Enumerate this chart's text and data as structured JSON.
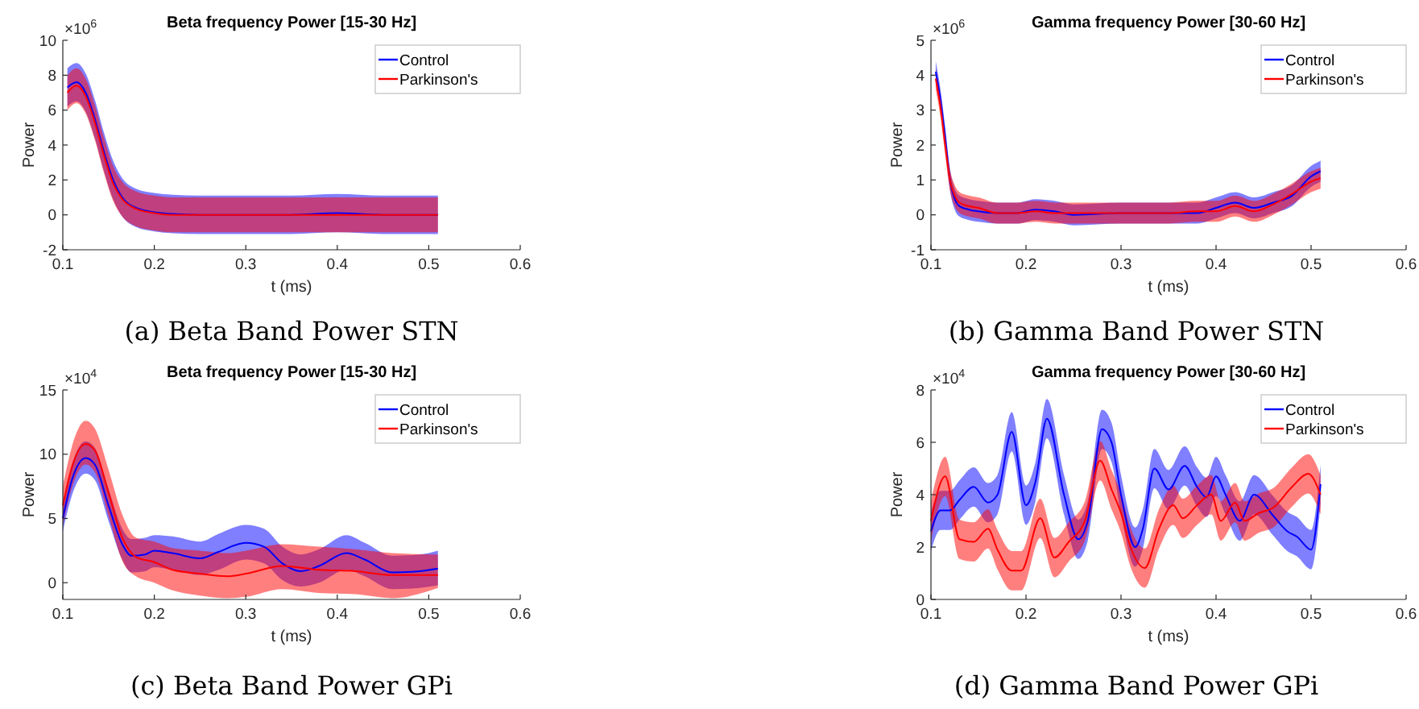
{
  "chart_data": [
    {
      "type": "line",
      "title": "Beta frequency Power [15-30 Hz]",
      "subtitle": "(a) Beta Band Power STN",
      "xlabel": "t (ms)",
      "ylabel": "Power",
      "annotations": [
        "×10$^{6}$"
      ],
      "legend": "top right",
      "xlim": [
        0.1,
        0.6
      ],
      "xticks": [
        0.1,
        0.2,
        0.3,
        0.4,
        0.5,
        0.6
      ],
      "ylim": [
        -2,
        10
      ],
      "yticks": [
        -2,
        0,
        2,
        4,
        6,
        8,
        10
      ],
      "x": [
        0.105,
        0.115,
        0.125,
        0.135,
        0.145,
        0.155,
        0.165,
        0.18,
        0.2,
        0.22,
        0.25,
        0.3,
        0.35,
        0.4,
        0.45,
        0.51
      ],
      "series": [
        {
          "name": "Control",
          "color": "#0000ff",
          "values": [
            7.3,
            7.6,
            7.0,
            5.5,
            3.6,
            2.0,
            1.0,
            0.4,
            0.15,
            0.05,
            0,
            0,
            0,
            0.1,
            0,
            0
          ],
          "lower": [
            6.2,
            6.5,
            5.9,
            4.4,
            2.5,
            0.9,
            -0.1,
            -0.7,
            -0.95,
            -1.05,
            -1.1,
            -1.1,
            -1.1,
            -1.0,
            -1.1,
            -1.1
          ],
          "upper": [
            8.4,
            8.7,
            8.1,
            6.6,
            4.7,
            3.1,
            2.1,
            1.5,
            1.25,
            1.15,
            1.1,
            1.1,
            1.1,
            1.2,
            1.1,
            1.1
          ]
        },
        {
          "name": "Parkinson's",
          "color": "#ff0000",
          "values": [
            7.0,
            7.4,
            6.8,
            5.3,
            3.4,
            1.8,
            0.9,
            0.35,
            0.1,
            0,
            0,
            0,
            0,
            0,
            0,
            0
          ],
          "lower": [
            6.0,
            6.4,
            5.8,
            4.3,
            2.4,
            0.8,
            -0.1,
            -0.65,
            -0.9,
            -1.0,
            -1.0,
            -1.0,
            -1.0,
            -1.0,
            -1.0,
            -1.0
          ],
          "upper": [
            8.0,
            8.4,
            7.8,
            6.3,
            4.4,
            2.8,
            1.9,
            1.35,
            1.1,
            1.0,
            1.0,
            1.0,
            1.0,
            1.0,
            1.0,
            1.0
          ]
        }
      ]
    },
    {
      "type": "line",
      "title": "Gamma frequency Power [30-60 Hz]",
      "subtitle": "(b) Gamma Band Power STN",
      "xlabel": "t (ms)",
      "ylabel": "Power",
      "annotations": [
        "×10$^{6}$"
      ],
      "legend": "top right",
      "xlim": [
        0.1,
        0.6
      ],
      "xticks": [
        0.1,
        0.2,
        0.3,
        0.4,
        0.5,
        0.6
      ],
      "ylim": [
        -1,
        5
      ],
      "yticks": [
        -1,
        0,
        1,
        2,
        3,
        4,
        5
      ],
      "x": [
        0.105,
        0.11,
        0.115,
        0.12,
        0.125,
        0.13,
        0.14,
        0.15,
        0.17,
        0.19,
        0.21,
        0.23,
        0.25,
        0.3,
        0.35,
        0.38,
        0.4,
        0.42,
        0.44,
        0.46,
        0.48,
        0.5,
        0.51
      ],
      "series": [
        {
          "name": "Control",
          "color": "#0000ff",
          "values": [
            4.1,
            3.3,
            2.2,
            1.0,
            0.45,
            0.25,
            0.15,
            0.1,
            0.05,
            0.05,
            0.15,
            0.1,
            0.0,
            0.05,
            0.05,
            0.05,
            0.2,
            0.35,
            0.2,
            0.35,
            0.55,
            1.1,
            1.25
          ],
          "lower": [
            3.8,
            3.0,
            1.9,
            0.7,
            0.15,
            -0.05,
            -0.15,
            -0.2,
            -0.25,
            -0.25,
            -0.15,
            -0.2,
            -0.3,
            -0.25,
            -0.25,
            -0.25,
            -0.1,
            0.05,
            -0.1,
            0.05,
            0.25,
            0.8,
            0.95
          ],
          "upper": [
            4.4,
            3.6,
            2.5,
            1.3,
            0.75,
            0.55,
            0.45,
            0.4,
            0.35,
            0.35,
            0.45,
            0.4,
            0.3,
            0.35,
            0.35,
            0.35,
            0.5,
            0.65,
            0.5,
            0.65,
            0.85,
            1.4,
            1.55
          ]
        },
        {
          "name": "Parkinson's",
          "color": "#ff0000",
          "values": [
            3.9,
            3.1,
            2.0,
            1.0,
            0.55,
            0.35,
            0.25,
            0.2,
            0.05,
            0.05,
            0.1,
            0.05,
            0.05,
            0.05,
            0.05,
            0.1,
            0.1,
            0.25,
            0.1,
            0.3,
            0.6,
            0.95,
            1.05
          ],
          "lower": [
            3.6,
            2.8,
            1.7,
            0.7,
            0.25,
            0.05,
            -0.05,
            -0.1,
            -0.25,
            -0.25,
            -0.2,
            -0.25,
            -0.25,
            -0.25,
            -0.25,
            -0.2,
            -0.2,
            -0.05,
            -0.2,
            0.0,
            0.3,
            0.65,
            0.75
          ],
          "upper": [
            4.2,
            3.4,
            2.3,
            1.3,
            0.85,
            0.65,
            0.55,
            0.5,
            0.35,
            0.35,
            0.4,
            0.35,
            0.35,
            0.35,
            0.35,
            0.4,
            0.4,
            0.55,
            0.4,
            0.6,
            0.9,
            1.25,
            1.35
          ]
        }
      ]
    },
    {
      "type": "line",
      "title": "Beta frequency Power [15-30 Hz]",
      "subtitle": "(c) Beta Band Power GPi",
      "xlabel": "t (ms)",
      "ylabel": "Power",
      "annotations": [
        "×10$^{4}$"
      ],
      "legend": "top right",
      "xlim": [
        0.1,
        0.6
      ],
      "xticks": [
        0.1,
        0.2,
        0.3,
        0.4,
        0.5,
        0.6
      ],
      "ylim": [
        -1.3,
        15
      ],
      "yticks": [
        0,
        5,
        10,
        15
      ],
      "series": [
        {
          "name": "Control",
          "color": "#0000ff",
          "x": [
            0.1,
            0.11,
            0.125,
            0.135,
            0.15,
            0.165,
            0.175,
            0.19,
            0.2,
            0.22,
            0.25,
            0.27,
            0.3,
            0.32,
            0.34,
            0.36,
            0.38,
            0.41,
            0.43,
            0.46,
            0.49,
            0.51
          ],
          "values": [
            5,
            8,
            9.7,
            9.2,
            6,
            3,
            2.1,
            2.2,
            2.5,
            2.3,
            1.9,
            2.4,
            3.1,
            2.8,
            1.5,
            0.9,
            1.3,
            2.3,
            1.8,
            0.8,
            0.9,
            1.1
          ],
          "lower": [
            4,
            6.8,
            8.5,
            8.0,
            4.8,
            1.8,
            0.8,
            0.9,
            1.2,
            1.0,
            0.6,
            1.0,
            1.8,
            1.5,
            0.2,
            -0.3,
            0.0,
            1.0,
            0.5,
            -0.5,
            -0.4,
            -0.2
          ],
          "upper": [
            6,
            9.2,
            11,
            10.5,
            7.3,
            4.2,
            3.4,
            3.5,
            3.7,
            3.6,
            3.2,
            3.8,
            4.5,
            4.2,
            2.8,
            2.2,
            2.6,
            3.7,
            3.1,
            2.1,
            2.2,
            2.5
          ]
        },
        {
          "name": "Parkinson's",
          "color": "#ff0000",
          "x": [
            0.1,
            0.11,
            0.125,
            0.135,
            0.15,
            0.165,
            0.18,
            0.2,
            0.22,
            0.25,
            0.28,
            0.3,
            0.34,
            0.38,
            0.42,
            0.46,
            0.51
          ],
          "values": [
            6,
            9,
            10.8,
            10.3,
            7,
            3.5,
            2.0,
            1.6,
            1.0,
            0.7,
            0.5,
            0.7,
            1.3,
            1.0,
            0.9,
            0.6,
            0.6
          ],
          "lower": [
            4.5,
            7.4,
            9.2,
            8.6,
            5.2,
            1.7,
            0.5,
            0.0,
            -0.6,
            -1.0,
            -1.2,
            -1.1,
            -0.5,
            -0.8,
            -0.9,
            -1.2,
            -0.4
          ],
          "upper": [
            7.5,
            10.6,
            12.6,
            12.0,
            8.8,
            5.3,
            3.5,
            3.2,
            2.7,
            2.5,
            2.3,
            2.5,
            3.0,
            2.8,
            2.6,
            2.3,
            2.2
          ]
        }
      ]
    },
    {
      "type": "line",
      "title": "Gamma frequency Power [30-60 Hz]",
      "subtitle": "(d) Gamma Band Power GPi",
      "xlabel": "t (ms)",
      "ylabel": "Power",
      "annotations": [
        "×10$^{4}$"
      ],
      "legend": "top right",
      "xlim": [
        0.1,
        0.6
      ],
      "xticks": [
        0.1,
        0.2,
        0.3,
        0.4,
        0.5,
        0.6
      ],
      "ylim": [
        0,
        8
      ],
      "yticks": [
        0,
        2,
        4,
        6,
        8
      ],
      "series": [
        {
          "name": "Control",
          "color": "#0000ff",
          "x": [
            0.1,
            0.11,
            0.12,
            0.13,
            0.145,
            0.16,
            0.17,
            0.185,
            0.2,
            0.21,
            0.222,
            0.24,
            0.255,
            0.265,
            0.28,
            0.29,
            0.3,
            0.315,
            0.323,
            0.335,
            0.35,
            0.367,
            0.38,
            0.39,
            0.4,
            0.41,
            0.425,
            0.44,
            0.46,
            0.475,
            0.485,
            0.5,
            0.51
          ],
          "values": [
            2.6,
            3.4,
            3.4,
            3.8,
            4.3,
            3.7,
            4.0,
            6.4,
            3.6,
            4.5,
            6.9,
            4.0,
            2.3,
            3.0,
            6.5,
            6.0,
            4.0,
            2.0,
            2.7,
            5.0,
            4.2,
            5.1,
            4.3,
            3.9,
            4.7,
            4.0,
            3.0,
            4.0,
            3.2,
            2.6,
            2.4,
            1.9,
            4.4
          ],
          "lower": [
            1.85,
            2.65,
            2.65,
            3.05,
            3.55,
            2.95,
            3.25,
            5.65,
            2.85,
            3.75,
            6.15,
            3.25,
            1.55,
            2.25,
            5.75,
            5.25,
            3.25,
            1.25,
            1.95,
            4.25,
            3.45,
            4.35,
            3.55,
            3.15,
            3.95,
            3.25,
            2.25,
            3.25,
            2.45,
            1.85,
            1.65,
            1.15,
            3.65
          ],
          "upper": [
            3.35,
            4.15,
            4.15,
            4.55,
            5.05,
            4.45,
            4.75,
            7.15,
            4.35,
            5.25,
            7.65,
            4.75,
            3.05,
            3.75,
            7.25,
            6.75,
            4.75,
            2.75,
            3.45,
            5.75,
            4.95,
            5.85,
            5.05,
            4.65,
            5.45,
            4.75,
            3.75,
            4.75,
            3.95,
            3.35,
            3.15,
            2.65,
            5.15
          ]
        },
        {
          "name": "Parkinson's",
          "color": "#ff0000",
          "x": [
            0.1,
            0.115,
            0.13,
            0.145,
            0.16,
            0.17,
            0.185,
            0.195,
            0.215,
            0.23,
            0.245,
            0.262,
            0.278,
            0.29,
            0.3,
            0.31,
            0.325,
            0.34,
            0.355,
            0.365,
            0.38,
            0.395,
            0.405,
            0.42,
            0.43,
            0.445,
            0.46,
            0.48,
            0.497,
            0.51
          ],
          "values": [
            3.0,
            4.7,
            2.3,
            2.2,
            2.7,
            1.9,
            1.1,
            1.1,
            3.1,
            1.6,
            2.2,
            3.0,
            5.3,
            4.2,
            3.3,
            2.0,
            1.2,
            2.7,
            3.6,
            3.1,
            3.6,
            4.0,
            3.0,
            3.7,
            3.0,
            3.3,
            3.5,
            4.3,
            4.8,
            4.0
          ],
          "lower": [
            2.25,
            3.95,
            1.55,
            1.45,
            1.95,
            1.15,
            0.35,
            0.35,
            2.35,
            0.85,
            1.45,
            2.25,
            4.55,
            3.45,
            2.55,
            1.25,
            0.45,
            1.95,
            2.85,
            2.35,
            2.85,
            3.25,
            2.25,
            2.95,
            2.25,
            2.55,
            2.75,
            3.55,
            4.05,
            3.25
          ],
          "upper": [
            3.75,
            5.45,
            3.05,
            2.95,
            3.45,
            2.65,
            1.85,
            1.85,
            3.85,
            2.35,
            2.95,
            3.75,
            6.05,
            4.95,
            4.05,
            2.75,
            1.95,
            3.45,
            4.35,
            3.85,
            4.35,
            4.75,
            3.75,
            4.45,
            3.75,
            4.05,
            4.25,
            5.05,
            5.55,
            4.75
          ]
        }
      ]
    }
  ]
}
